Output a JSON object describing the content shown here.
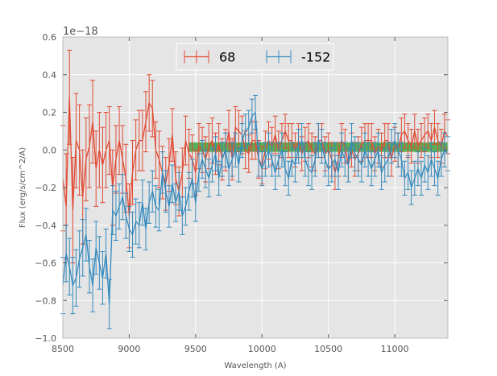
{
  "chart_data": {
    "type": "line",
    "title": "",
    "xlabel": "Wavelength (A)",
    "ylabel": "Flux (erg/s/cm^2/A)",
    "y_offset_label": "1e−18",
    "xlim": [
      8500,
      11400
    ],
    "ylim": [
      -1.0,
      0.6
    ],
    "x_ticks": [
      8500,
      9000,
      9500,
      10000,
      10500,
      11000
    ],
    "x_tick_labels": [
      "8500",
      "9000",
      "9500",
      "10000",
      "10500",
      "11000"
    ],
    "y_ticks": [
      -1.0,
      -0.8,
      -0.6,
      -0.4,
      -0.2,
      0.0,
      0.2,
      0.4,
      0.6
    ],
    "y_tick_labels": [
      "−1.0",
      "−0.8",
      "−0.6",
      "−0.4",
      "−0.2",
      "0.0",
      "0.2",
      "0.4",
      "0.6"
    ],
    "grid": true,
    "background": "#e5e5e5",
    "legend_position": "top-center",
    "band": {
      "x": [
        9450,
        11400
      ],
      "y": [
        -0.01,
        0.04
      ],
      "color": "#3fa23f"
    },
    "series": [
      {
        "name": "68",
        "color": "#e24a33",
        "x": [
          8500,
          8525,
          8550,
          8575,
          8600,
          8625,
          8650,
          8675,
          8700,
          8725,
          8750,
          8775,
          8800,
          8825,
          8850,
          8875,
          8900,
          8925,
          8950,
          8975,
          9000,
          9025,
          9050,
          9075,
          9100,
          9125,
          9150,
          9175,
          9200,
          9225,
          9250,
          9275,
          9300,
          9325,
          9350,
          9375,
          9400,
          9425,
          9450,
          9475,
          9500,
          9525,
          9550,
          9575,
          9600,
          9625,
          9650,
          9675,
          9700,
          9725,
          9750,
          9775,
          9800,
          9825,
          9850,
          9875,
          9900,
          9925,
          9950,
          9975,
          10000,
          10025,
          10050,
          10075,
          10100,
          10125,
          10150,
          10175,
          10200,
          10225,
          10250,
          10275,
          10300,
          10325,
          10350,
          10375,
          10400,
          10425,
          10450,
          10475,
          10500,
          10525,
          10550,
          10575,
          10600,
          10625,
          10650,
          10675,
          10700,
          10725,
          10750,
          10775,
          10800,
          10825,
          10850,
          10875,
          10900,
          10925,
          10950,
          10975,
          11000,
          11025,
          11050,
          11075,
          11100,
          11125,
          11150,
          11175,
          11200,
          11225,
          11250,
          11275,
          11300,
          11325,
          11350,
          11375,
          11400
        ],
        "y": [
          -0.15,
          -0.3,
          0.28,
          -0.32,
          0.05,
          0.0,
          -0.25,
          -0.05,
          0.02,
          0.15,
          -0.1,
          0.0,
          -0.08,
          0.0,
          0.05,
          -0.2,
          -0.05,
          0.05,
          -0.05,
          -0.15,
          -0.35,
          -0.12,
          0.0,
          0.05,
          0.05,
          0.15,
          0.25,
          0.22,
          0.0,
          -0.05,
          -0.12,
          -0.18,
          -0.08,
          0.08,
          -0.15,
          -0.22,
          -0.12,
          0.05,
          -0.02,
          -0.05,
          -0.12,
          0.02,
          0.0,
          -0.05,
          0.02,
          0.05,
          -0.02,
          0.03,
          -0.05,
          0.0,
          0.1,
          -0.05,
          0.12,
          0.1,
          0.08,
          0.0,
          -0.02,
          0.05,
          0.05,
          -0.05,
          -0.08,
          0.0,
          0.05,
          0.02,
          0.08,
          0.0,
          0.05,
          0.1,
          0.05,
          0.05,
          0.0,
          0.05,
          -0.02,
          0.03,
          0.05,
          0.0,
          -0.02,
          0.05,
          0.05,
          -0.02,
          0.0,
          -0.05,
          -0.12,
          -0.05,
          0.05,
          0.02,
          -0.08,
          0.0,
          -0.05,
          -0.02,
          0.03,
          0.05,
          0.05,
          0.05,
          -0.02,
          0.02,
          0.0,
          0.05,
          0.05,
          -0.05,
          0.03,
          0.0,
          0.08,
          0.1,
          0.05,
          0.02,
          0.1,
          0.02,
          0.05,
          0.08,
          0.1,
          0.05,
          0.12,
          0.05,
          0.02,
          0.1,
          0.07
        ],
        "err": [
          0.28,
          0.28,
          0.25,
          0.28,
          0.25,
          0.24,
          0.25,
          0.22,
          0.22,
          0.22,
          0.2,
          0.2,
          0.2,
          0.2,
          0.18,
          0.2,
          0.18,
          0.18,
          0.18,
          0.18,
          0.17,
          0.17,
          0.16,
          0.16,
          0.16,
          0.16,
          0.15,
          0.15,
          0.15,
          0.15,
          0.14,
          0.14,
          0.14,
          0.14,
          0.14,
          0.13,
          0.13,
          0.13,
          0.13,
          0.13,
          0.12,
          0.12,
          0.12,
          0.12,
          0.12,
          0.12,
          0.11,
          0.11,
          0.11,
          0.11,
          0.11,
          0.11,
          0.11,
          0.11,
          0.1,
          0.1,
          0.1,
          0.1,
          0.1,
          0.1,
          0.1,
          0.1,
          0.1,
          0.1,
          0.1,
          0.1,
          0.09,
          0.09,
          0.09,
          0.09,
          0.09,
          0.09,
          0.09,
          0.09,
          0.09,
          0.09,
          0.09,
          0.09,
          0.09,
          0.09,
          0.09,
          0.09,
          0.09,
          0.09,
          0.09,
          0.09,
          0.09,
          0.09,
          0.09,
          0.09,
          0.09,
          0.09,
          0.09,
          0.09,
          0.09,
          0.09,
          0.09,
          0.09,
          0.09,
          0.09,
          0.09,
          0.09,
          0.09,
          0.09,
          0.09,
          0.09,
          0.09,
          0.09,
          0.09,
          0.09,
          0.09,
          0.09,
          0.09,
          0.09,
          0.09,
          0.09,
          0.09
        ]
      },
      {
        "name": "-152",
        "color": "#348abd",
        "x": [
          8500,
          8525,
          8550,
          8575,
          8600,
          8625,
          8650,
          8675,
          8700,
          8725,
          8750,
          8775,
          8800,
          8825,
          8850,
          8875,
          8900,
          8925,
          8950,
          8975,
          9000,
          9025,
          9050,
          9075,
          9100,
          9125,
          9150,
          9175,
          9200,
          9225,
          9250,
          9275,
          9300,
          9325,
          9350,
          9375,
          9400,
          9425,
          9450,
          9475,
          9500,
          9525,
          9550,
          9575,
          9600,
          9625,
          9650,
          9675,
          9700,
          9725,
          9750,
          9775,
          9800,
          9825,
          9850,
          9875,
          9900,
          9925,
          9950,
          9975,
          10000,
          10025,
          10050,
          10075,
          10100,
          10125,
          10150,
          10175,
          10200,
          10225,
          10250,
          10275,
          10300,
          10325,
          10350,
          10375,
          10400,
          10425,
          10450,
          10475,
          10500,
          10525,
          10550,
          10575,
          10600,
          10625,
          10650,
          10675,
          10700,
          10725,
          10750,
          10775,
          10800,
          10825,
          10850,
          10875,
          10900,
          10925,
          10950,
          10975,
          11000,
          11025,
          11050,
          11075,
          11100,
          11125,
          11150,
          11175,
          11200,
          11225,
          11250,
          11275,
          11300,
          11325,
          11350,
          11375,
          11400
        ],
        "y": [
          -0.72,
          -0.55,
          -0.62,
          -0.72,
          -0.68,
          -0.58,
          -0.52,
          -0.45,
          -0.62,
          -0.72,
          -0.52,
          -0.6,
          -0.68,
          -0.55,
          -0.82,
          -0.32,
          -0.35,
          -0.3,
          -0.25,
          -0.35,
          -0.42,
          -0.45,
          -0.38,
          -0.4,
          -0.28,
          -0.42,
          -0.28,
          -0.22,
          -0.3,
          -0.32,
          -0.12,
          -0.22,
          -0.3,
          -0.18,
          -0.28,
          -0.22,
          -0.35,
          -0.3,
          -0.22,
          -0.15,
          -0.28,
          -0.12,
          -0.05,
          -0.1,
          -0.15,
          -0.08,
          -0.02,
          -0.15,
          -0.05,
          0.0,
          -0.1,
          -0.05,
          0.0,
          -0.08,
          0.05,
          0.1,
          0.12,
          0.18,
          0.2,
          -0.05,
          -0.1,
          -0.05,
          0.0,
          -0.05,
          -0.12,
          -0.05,
          0.0,
          -0.1,
          -0.15,
          -0.05,
          -0.08,
          0.02,
          0.05,
          -0.05,
          -0.1,
          -0.12,
          -0.05,
          0.05,
          0.02,
          -0.05,
          -0.1,
          -0.08,
          -0.05,
          -0.12,
          0.0,
          -0.05,
          -0.08,
          0.05,
          -0.02,
          -0.05,
          -0.08,
          0.0,
          -0.05,
          -0.1,
          -0.05,
          0.0,
          -0.12,
          -0.08,
          -0.05,
          0.02,
          0.05,
          0.0,
          -0.05,
          -0.15,
          -0.12,
          -0.2,
          -0.15,
          -0.1,
          -0.15,
          -0.08,
          -0.12,
          -0.05,
          -0.1,
          -0.15,
          -0.05,
          0.0,
          -0.02
        ],
        "err": [
          0.15,
          0.15,
          0.15,
          0.15,
          0.15,
          0.15,
          0.15,
          0.14,
          0.14,
          0.14,
          0.14,
          0.14,
          0.14,
          0.13,
          0.13,
          0.13,
          0.13,
          0.12,
          0.12,
          0.12,
          0.12,
          0.12,
          0.12,
          0.12,
          0.12,
          0.11,
          0.11,
          0.11,
          0.11,
          0.11,
          0.11,
          0.11,
          0.11,
          0.1,
          0.1,
          0.1,
          0.1,
          0.1,
          0.1,
          0.1,
          0.1,
          0.1,
          0.1,
          0.1,
          0.1,
          0.09,
          0.09,
          0.09,
          0.09,
          0.09,
          0.09,
          0.09,
          0.09,
          0.09,
          0.09,
          0.09,
          0.09,
          0.09,
          0.09,
          0.09,
          0.09,
          0.09,
          0.09,
          0.09,
          0.09,
          0.09,
          0.09,
          0.09,
          0.09,
          0.09,
          0.09,
          0.09,
          0.09,
          0.09,
          0.09,
          0.09,
          0.09,
          0.09,
          0.09,
          0.09,
          0.09,
          0.09,
          0.09,
          0.09,
          0.09,
          0.09,
          0.09,
          0.09,
          0.09,
          0.09,
          0.09,
          0.09,
          0.09,
          0.09,
          0.09,
          0.09,
          0.09,
          0.09,
          0.09,
          0.09,
          0.09,
          0.09,
          0.09,
          0.09,
          0.09,
          0.09,
          0.09,
          0.09,
          0.09,
          0.09,
          0.09,
          0.09,
          0.09,
          0.09,
          0.09,
          0.09,
          0.09
        ]
      }
    ]
  }
}
